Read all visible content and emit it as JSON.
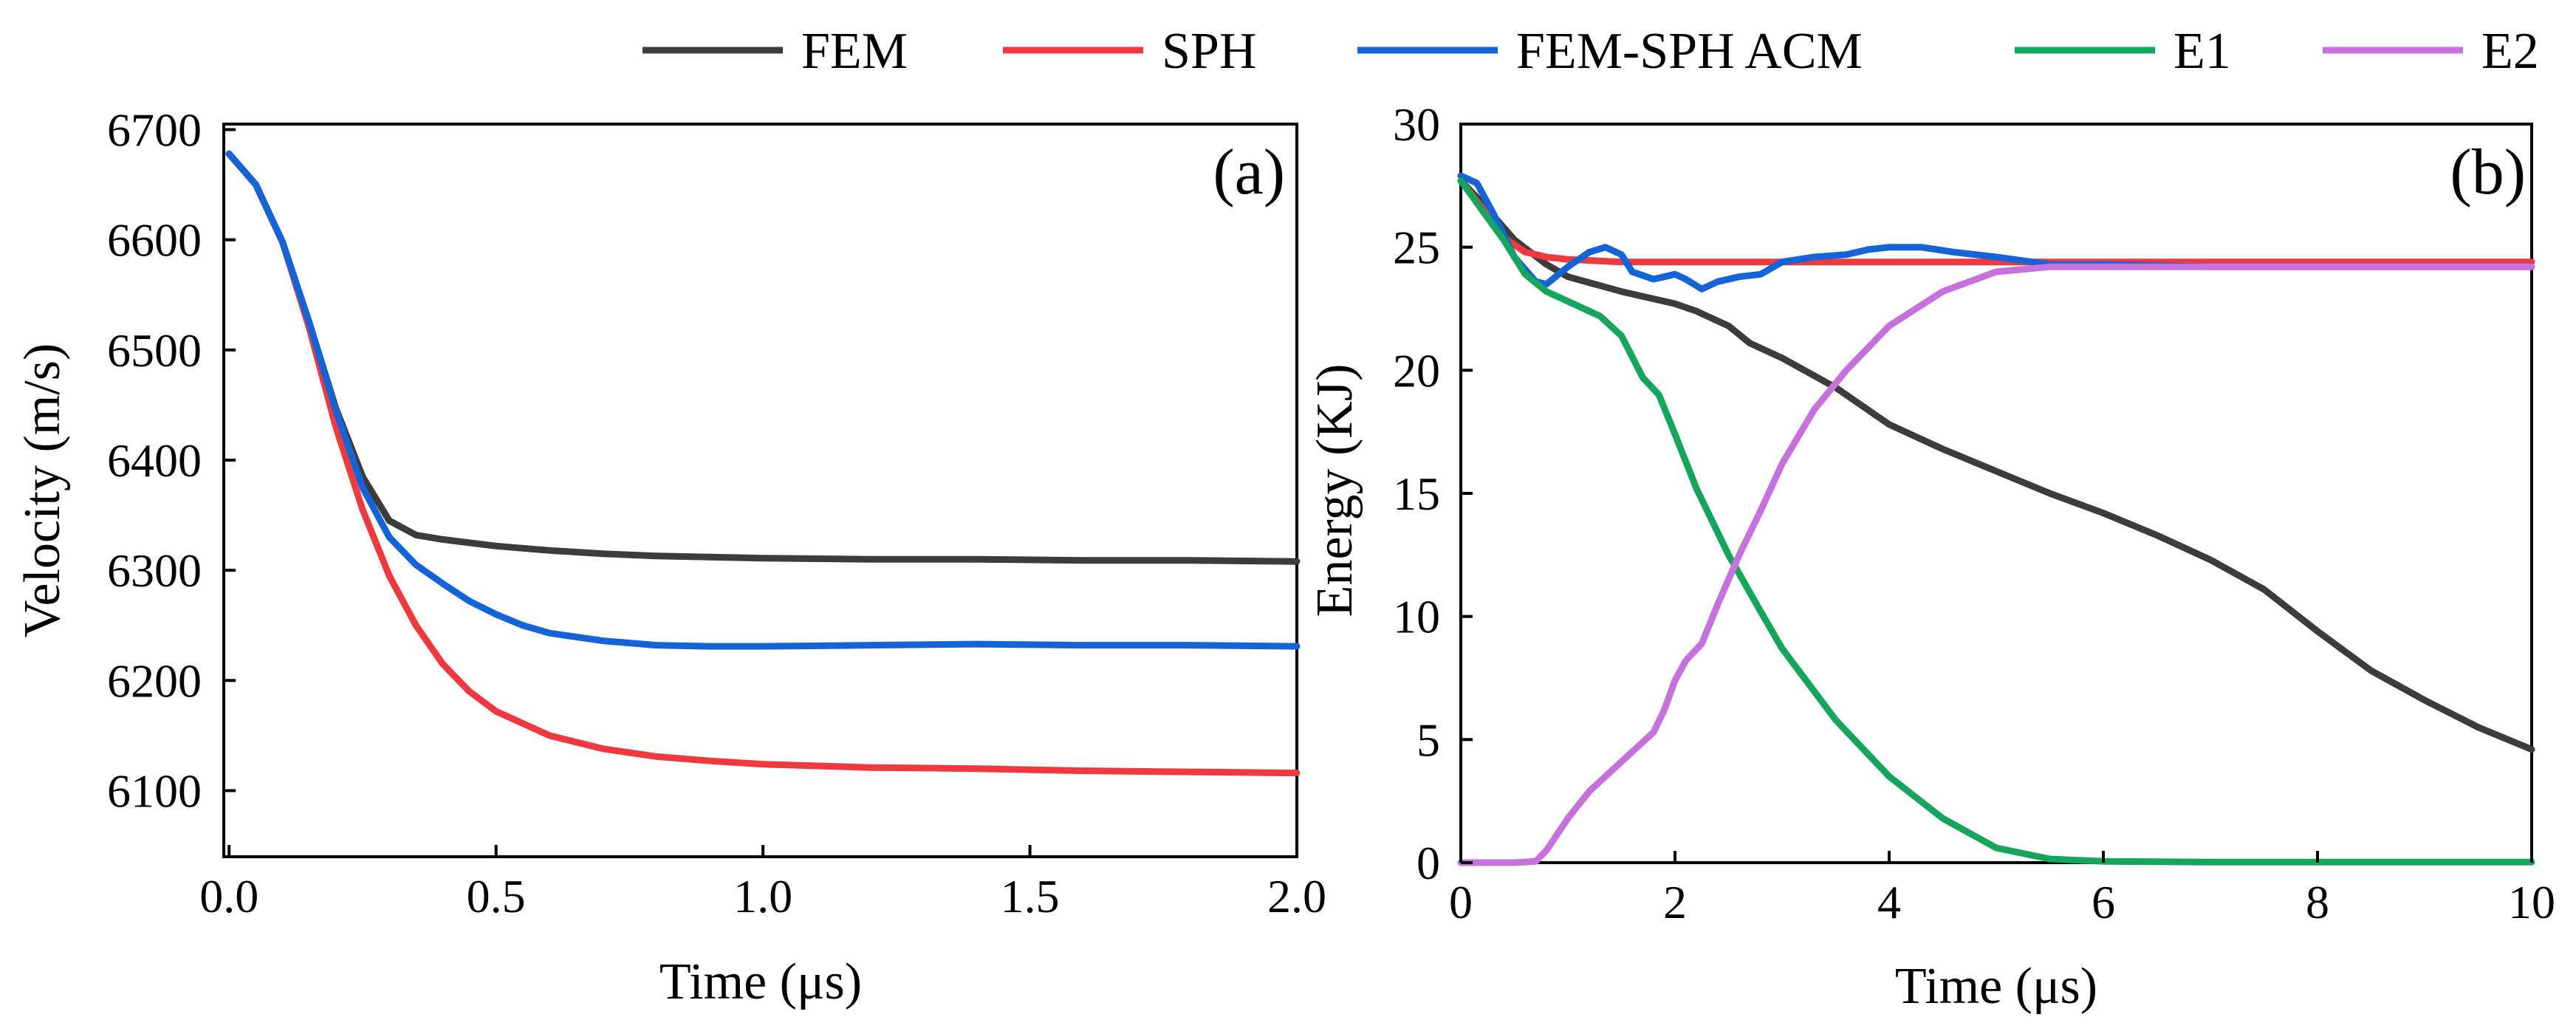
{
  "legend": [
    {
      "label": "FEM",
      "color": "#3c3c3c"
    },
    {
      "label": "SPH",
      "color": "#ee3a3e"
    },
    {
      "label": "FEM-SPH ACM",
      "color": "#1464d7"
    },
    {
      "label": "E1",
      "color": "#16a55c"
    },
    {
      "label": "E2",
      "color": "#c671dc"
    }
  ],
  "chart_data": [
    {
      "type": "line",
      "panel_label": "(a)",
      "title": "",
      "xlabel": "Time (μs)",
      "ylabel": "Velocity (m/s)",
      "xlim": [
        -0.01,
        2.0
      ],
      "ylim": [
        6040,
        6705
      ],
      "xticks": [
        0.0,
        0.5,
        1.0,
        1.5,
        2.0
      ],
      "xtick_labels": [
        "0.0",
        "0.5",
        "1.0",
        "1.5",
        "2.0"
      ],
      "yticks": [
        6100,
        6200,
        6300,
        6400,
        6500,
        6600,
        6700
      ],
      "ytick_labels": [
        "6100",
        "6200",
        "6300",
        "6400",
        "6500",
        "6600",
        "6700"
      ],
      "series": [
        {
          "name": "FEM",
          "color": "#3c3c3c",
          "points": [
            [
              0.0,
              6678
            ],
            [
              0.05,
              6650
            ],
            [
              0.1,
              6598
            ],
            [
              0.15,
              6525
            ],
            [
              0.2,
              6447
            ],
            [
              0.25,
              6385
            ],
            [
              0.3,
              6345
            ],
            [
              0.35,
              6332
            ],
            [
              0.4,
              6328
            ],
            [
              0.5,
              6322
            ],
            [
              0.6,
              6318
            ],
            [
              0.7,
              6315
            ],
            [
              0.8,
              6313
            ],
            [
              0.9,
              6312
            ],
            [
              1.0,
              6311
            ],
            [
              1.2,
              6310
            ],
            [
              1.4,
              6310
            ],
            [
              1.6,
              6309
            ],
            [
              1.8,
              6309
            ],
            [
              2.0,
              6308
            ]
          ]
        },
        {
          "name": "SPH",
          "color": "#ee3a3e",
          "points": [
            [
              0.0,
              6678
            ],
            [
              0.05,
              6650
            ],
            [
              0.1,
              6598
            ],
            [
              0.15,
              6520
            ],
            [
              0.2,
              6430
            ],
            [
              0.25,
              6355
            ],
            [
              0.3,
              6295
            ],
            [
              0.35,
              6250
            ],
            [
              0.4,
              6215
            ],
            [
              0.45,
              6190
            ],
            [
              0.5,
              6172
            ],
            [
              0.6,
              6150
            ],
            [
              0.7,
              6138
            ],
            [
              0.8,
              6131
            ],
            [
              0.9,
              6127
            ],
            [
              1.0,
              6124
            ],
            [
              1.2,
              6121
            ],
            [
              1.4,
              6120
            ],
            [
              1.6,
              6118
            ],
            [
              1.8,
              6117
            ],
            [
              2.0,
              6116
            ]
          ]
        },
        {
          "name": "FEM-SPH ACM",
          "color": "#1464d7",
          "points": [
            [
              0.0,
              6678
            ],
            [
              0.05,
              6650
            ],
            [
              0.1,
              6598
            ],
            [
              0.15,
              6525
            ],
            [
              0.2,
              6445
            ],
            [
              0.25,
              6375
            ],
            [
              0.3,
              6330
            ],
            [
              0.35,
              6305
            ],
            [
              0.4,
              6288
            ],
            [
              0.45,
              6272
            ],
            [
              0.5,
              6260
            ],
            [
              0.55,
              6250
            ],
            [
              0.6,
              6243
            ],
            [
              0.7,
              6236
            ],
            [
              0.8,
              6232
            ],
            [
              0.9,
              6231
            ],
            [
              1.0,
              6231
            ],
            [
              1.2,
              6232
            ],
            [
              1.4,
              6233
            ],
            [
              1.6,
              6232
            ],
            [
              1.8,
              6232
            ],
            [
              2.0,
              6231
            ]
          ]
        }
      ]
    },
    {
      "type": "line",
      "panel_label": "(b)",
      "title": "",
      "xlabel": "Time (μs)",
      "ylabel": "Energy (KJ)",
      "xlim": [
        0,
        10
      ],
      "ylim": [
        0,
        30
      ],
      "xticks": [
        0,
        2,
        4,
        6,
        8,
        10
      ],
      "xtick_labels": [
        "0",
        "2",
        "4",
        "6",
        "8",
        "10"
      ],
      "yticks": [
        0,
        5,
        10,
        15,
        20,
        25,
        30
      ],
      "ytick_labels": [
        "0",
        "5",
        "10",
        "15",
        "20",
        "25",
        "30"
      ],
      "series": [
        {
          "name": "FEM",
          "color": "#3c3c3c",
          "points": [
            [
              0,
              27.7
            ],
            [
              0.2,
              26.8
            ],
            [
              0.5,
              25.3
            ],
            [
              0.8,
              24.3
            ],
            [
              1.0,
              23.8
            ],
            [
              1.5,
              23.2
            ],
            [
              2.0,
              22.7
            ],
            [
              2.2,
              22.4
            ],
            [
              2.5,
              21.8
            ],
            [
              2.7,
              21.1
            ],
            [
              3.0,
              20.5
            ],
            [
              3.5,
              19.3
            ],
            [
              4.0,
              17.8
            ],
            [
              4.5,
              16.8
            ],
            [
              5.0,
              15.9
            ],
            [
              5.5,
              15.0
            ],
            [
              6.0,
              14.2
            ],
            [
              6.5,
              13.3
            ],
            [
              7.0,
              12.3
            ],
            [
              7.5,
              11.1
            ],
            [
              8.0,
              9.4
            ],
            [
              8.5,
              7.8
            ],
            [
              9.0,
              6.6
            ],
            [
              9.5,
              5.5
            ],
            [
              10.0,
              4.6
            ]
          ]
        },
        {
          "name": "SPH",
          "color": "#ee3a3e",
          "points": [
            [
              0,
              27.7
            ],
            [
              0.2,
              26.6
            ],
            [
              0.4,
              25.4
            ],
            [
              0.6,
              24.8
            ],
            [
              0.8,
              24.6
            ],
            [
              1.0,
              24.5
            ],
            [
              1.5,
              24.4
            ],
            [
              2.0,
              24.4
            ],
            [
              4.0,
              24.4
            ],
            [
              6.0,
              24.4
            ],
            [
              8.0,
              24.4
            ],
            [
              10.0,
              24.4
            ]
          ]
        },
        {
          "name": "FEM-SPH ACM",
          "color": "#1464d7",
          "points": [
            [
              0,
              27.9
            ],
            [
              0.15,
              27.6
            ],
            [
              0.3,
              26.4
            ],
            [
              0.5,
              24.6
            ],
            [
              0.7,
              23.6
            ],
            [
              0.8,
              23.5
            ],
            [
              1.0,
              24.2
            ],
            [
              1.2,
              24.8
            ],
            [
              1.35,
              25.0
            ],
            [
              1.5,
              24.7
            ],
            [
              1.6,
              24.0
            ],
            [
              1.8,
              23.7
            ],
            [
              1.9,
              23.8
            ],
            [
              2.0,
              23.9
            ],
            [
              2.1,
              23.7
            ],
            [
              2.25,
              23.3
            ],
            [
              2.4,
              23.6
            ],
            [
              2.6,
              23.8
            ],
            [
              2.8,
              23.9
            ],
            [
              3.0,
              24.4
            ],
            [
              3.3,
              24.6
            ],
            [
              3.6,
              24.7
            ],
            [
              3.8,
              24.9
            ],
            [
              4.0,
              25.0
            ],
            [
              4.3,
              25.0
            ],
            [
              4.6,
              24.8
            ],
            [
              5.0,
              24.6
            ],
            [
              5.5,
              24.3
            ],
            [
              6.0,
              24.3
            ],
            [
              7.0,
              24.2
            ],
            [
              8.0,
              24.2
            ],
            [
              9.0,
              24.2
            ],
            [
              10.0,
              24.2
            ]
          ]
        },
        {
          "name": "E1",
          "color": "#16a55c",
          "points": [
            [
              0,
              27.7
            ],
            [
              0.2,
              26.5
            ],
            [
              0.4,
              25.3
            ],
            [
              0.6,
              23.9
            ],
            [
              0.8,
              23.2
            ],
            [
              1.0,
              22.8
            ],
            [
              1.3,
              22.2
            ],
            [
              1.5,
              21.4
            ],
            [
              1.7,
              19.7
            ],
            [
              1.85,
              19.0
            ],
            [
              2.0,
              17.4
            ],
            [
              2.2,
              15.2
            ],
            [
              2.5,
              12.5
            ],
            [
              2.8,
              10.2
            ],
            [
              3.0,
              8.7
            ],
            [
              3.5,
              5.8
            ],
            [
              4.0,
              3.5
            ],
            [
              4.5,
              1.8
            ],
            [
              5.0,
              0.6
            ],
            [
              5.5,
              0.15
            ],
            [
              6.0,
              0.05
            ],
            [
              7.0,
              0.02
            ],
            [
              8.0,
              0.02
            ],
            [
              10.0,
              0.02
            ]
          ]
        },
        {
          "name": "E2",
          "color": "#c671dc",
          "points": [
            [
              0,
              0
            ],
            [
              0.5,
              0
            ],
            [
              0.7,
              0.05
            ],
            [
              0.8,
              0.5
            ],
            [
              1.0,
              1.8
            ],
            [
              1.2,
              2.9
            ],
            [
              1.5,
              4.1
            ],
            [
              1.8,
              5.3
            ],
            [
              1.9,
              6.2
            ],
            [
              2.0,
              7.4
            ],
            [
              2.1,
              8.2
            ],
            [
              2.25,
              8.9
            ],
            [
              2.4,
              10.5
            ],
            [
              2.6,
              12.5
            ],
            [
              2.8,
              14.3
            ],
            [
              3.0,
              16.2
            ],
            [
              3.3,
              18.4
            ],
            [
              3.6,
              20.0
            ],
            [
              4.0,
              21.8
            ],
            [
              4.5,
              23.2
            ],
            [
              5.0,
              24.0
            ],
            [
              5.5,
              24.2
            ],
            [
              6.0,
              24.2
            ],
            [
              7.0,
              24.2
            ],
            [
              8.0,
              24.2
            ],
            [
              10.0,
              24.2
            ]
          ]
        }
      ]
    }
  ]
}
